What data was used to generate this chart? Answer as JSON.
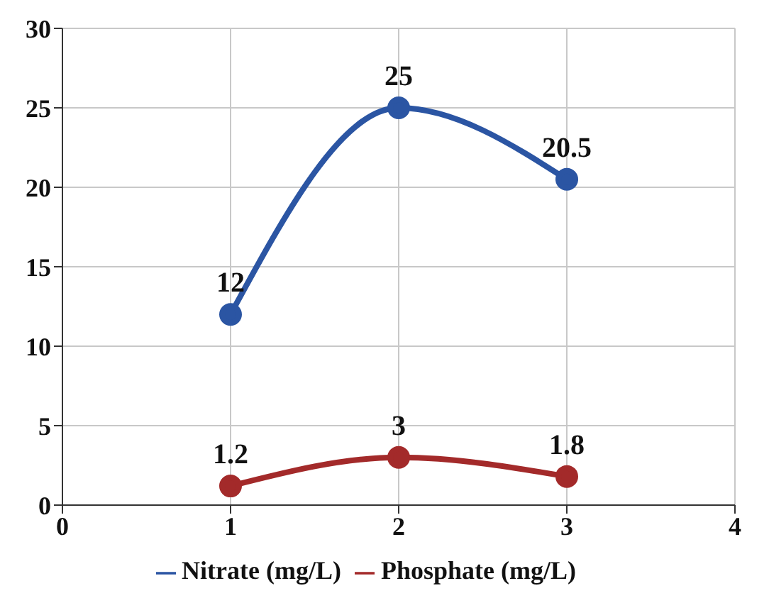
{
  "chart_data": {
    "type": "line",
    "x": [
      1,
      2,
      3
    ],
    "series": [
      {
        "name": "Nitrate (mg/L)",
        "color": "#2b55a3",
        "values": [
          12,
          25,
          20.5
        ]
      },
      {
        "name": "Phosphate (mg/L)",
        "color": "#a32a2a",
        "values": [
          1.2,
          3,
          1.8
        ]
      }
    ],
    "xlim": [
      0,
      4
    ],
    "xticks": [
      0,
      1,
      2,
      3,
      4
    ],
    "ylim": [
      0,
      30
    ],
    "yticks": [
      0,
      5,
      10,
      15,
      20,
      25,
      30
    ],
    "grid": true,
    "legend": "bottom",
    "marker": "circle",
    "line_style": "solid",
    "data_labels": true
  }
}
